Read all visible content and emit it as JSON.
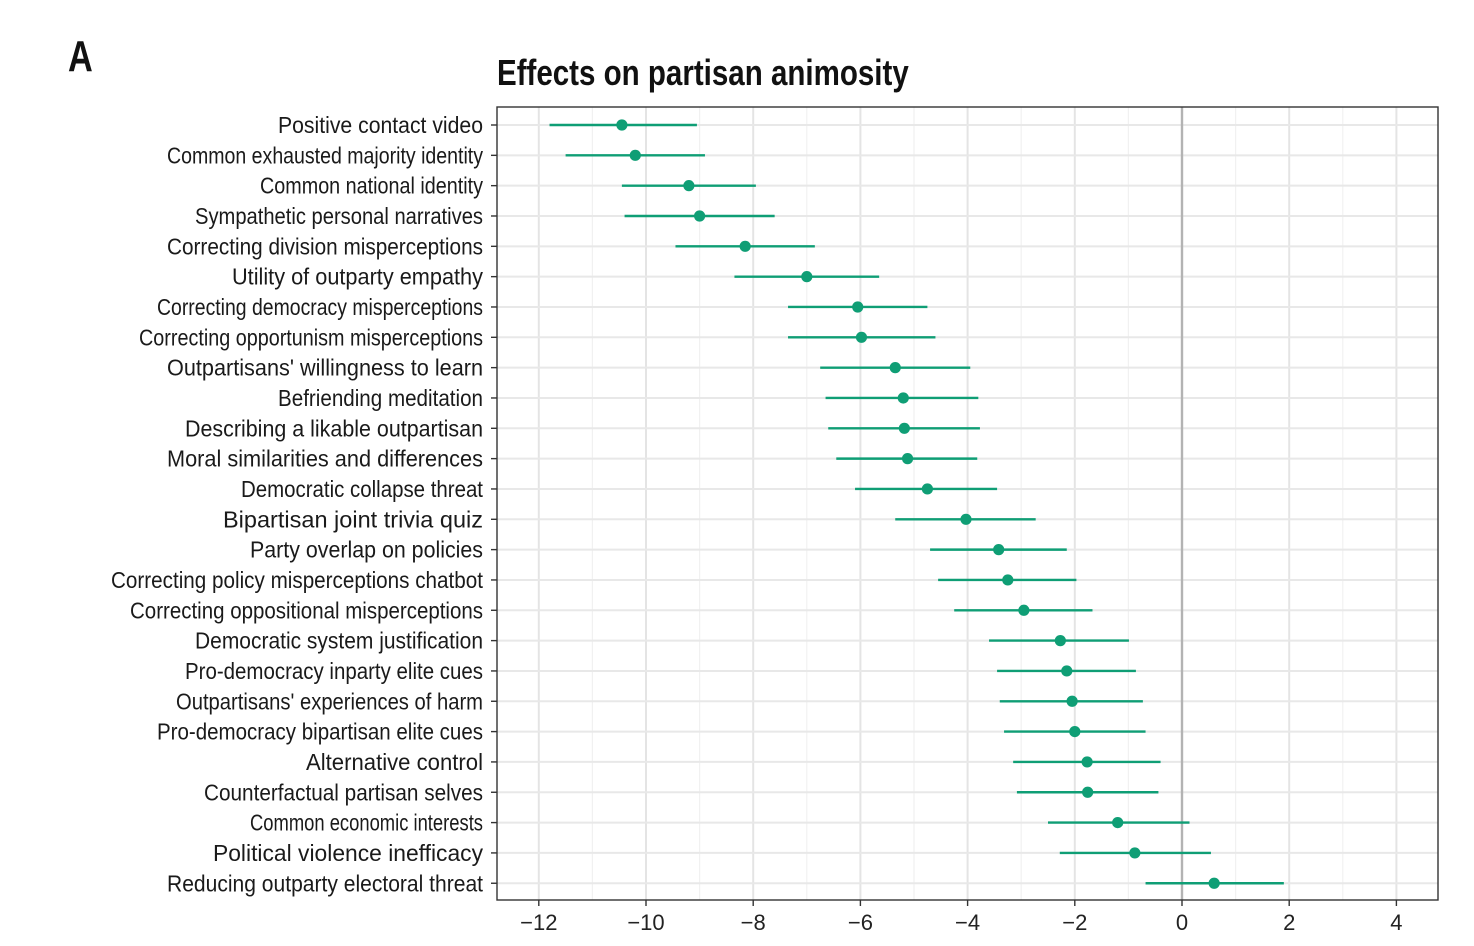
{
  "panel": {
    "letter": "A"
  },
  "chart_data": {
    "type": "scatter",
    "subtype": "dot-and-whisker",
    "title": "Effects on partisan animosity",
    "xlabel": "",
    "ylabel": "",
    "xlim": [
      -12.8,
      4.8
    ],
    "xticks": [
      -12,
      -10,
      -8,
      -6,
      -4,
      -2,
      0,
      2,
      4
    ],
    "xtick_labels": [
      "−12",
      "−10",
      "−8",
      "−6",
      "−4",
      "−2",
      "0",
      "2",
      "4"
    ],
    "reference_line_x": 0,
    "grid": true,
    "color": "#0f9e75",
    "categories": [
      "Positive contact video",
      "Common exhausted majority identity",
      "Common national identity",
      "Sympathetic personal narratives",
      "Correcting division misperceptions",
      "Utility of outparty empathy",
      "Correcting democracy misperceptions",
      "Correcting opportunism misperceptions",
      "Outpartisans' willingness to learn",
      "Befriending meditation",
      "Describing a likable outpartisan",
      "Moral similarities and differences",
      "Democratic collapse threat",
      "Bipartisan joint trivia quiz",
      "Party overlap on policies",
      "Correcting policy misperceptions chatbot",
      "Correcting oppositional misperceptions",
      "Democratic system justification",
      "Pro-democracy inparty elite cues",
      "Outpartisans' experiences of harm",
      "Pro-democracy bipartisan elite cues",
      "Alternative control",
      "Counterfactual partisan selves",
      "Common economic interests",
      "Political violence inefficacy",
      "Reducing outparty electoral threat"
    ],
    "estimates": [
      -10.45,
      -10.2,
      -9.2,
      -9.0,
      -8.15,
      -7.0,
      -6.05,
      -5.98,
      -5.35,
      -5.2,
      -5.18,
      -5.12,
      -4.75,
      -4.03,
      -3.42,
      -3.25,
      -2.95,
      -2.27,
      -2.15,
      -2.05,
      -2.0,
      -1.77,
      -1.76,
      -1.2,
      -0.88,
      0.6
    ],
    "ci_low": [
      -11.8,
      -11.5,
      -10.45,
      -10.4,
      -9.45,
      -8.35,
      -7.35,
      -7.35,
      -6.75,
      -6.65,
      -6.6,
      -6.45,
      -6.1,
      -5.35,
      -4.7,
      -4.55,
      -4.25,
      -3.6,
      -3.45,
      -3.4,
      -3.32,
      -3.15,
      -3.08,
      -2.5,
      -2.28,
      -0.68
    ],
    "ci_high": [
      -9.05,
      -8.9,
      -7.95,
      -7.6,
      -6.85,
      -5.65,
      -4.75,
      -4.6,
      -3.95,
      -3.8,
      -3.77,
      -3.82,
      -3.45,
      -2.73,
      -2.15,
      -1.97,
      -1.67,
      -0.99,
      -0.86,
      -0.73,
      -0.68,
      -0.4,
      -0.44,
      0.14,
      0.54,
      1.9
    ]
  }
}
